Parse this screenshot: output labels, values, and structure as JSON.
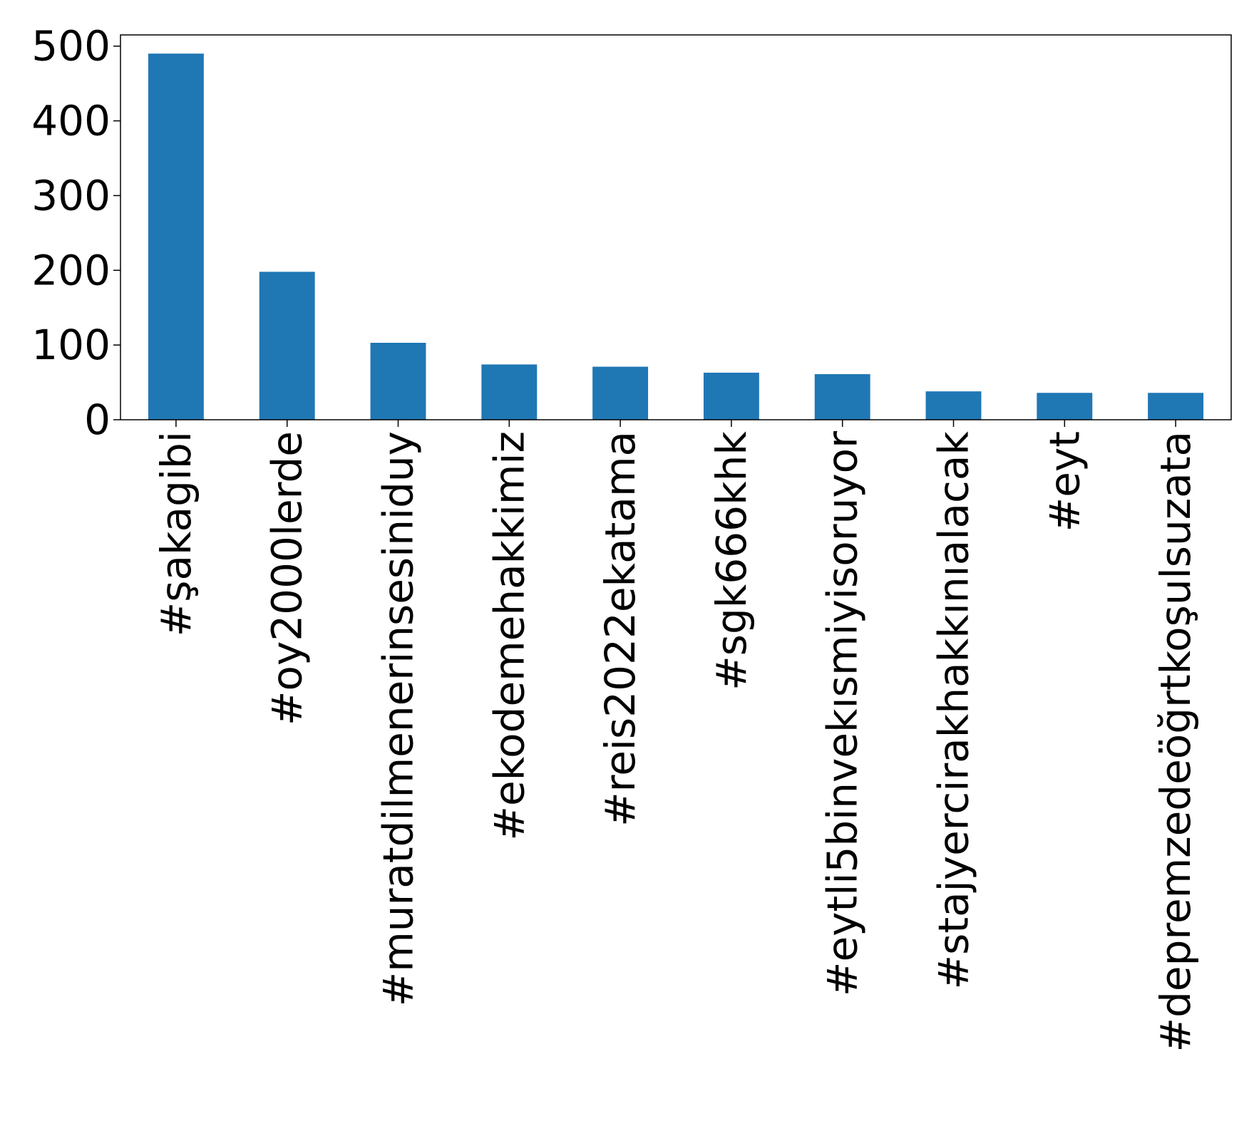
{
  "chart_data": {
    "type": "bar",
    "title": "",
    "xlabel": "",
    "ylabel": "",
    "categories": [
      "#şakagibi",
      "#oy2000lerde",
      "#muratdilmenerinsesiniduy",
      "#ekodemehakkimiz",
      "#reis2022ekatama",
      "#sgk666khk",
      "#eytli5binvekısmiyisoruyor",
      "#stajyercirakhakkınıalacak",
      "#eyt",
      "#depremzedeöğrtkoşulsuzata"
    ],
    "values": [
      490,
      198,
      103,
      74,
      71,
      63,
      61,
      38,
      36,
      36
    ],
    "ylim": [
      0,
      515
    ],
    "yticks": [
      0,
      100,
      200,
      300,
      400,
      500
    ],
    "grid": false,
    "legend": "none",
    "colors": {
      "bar": "#1f77b4",
      "axis": "#000000",
      "text": "#000000"
    }
  }
}
